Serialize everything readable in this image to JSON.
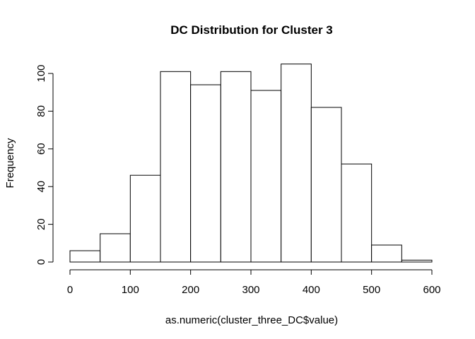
{
  "chart_data": {
    "type": "bar",
    "title": "DC Distribution for Cluster 3",
    "xlabel": "as.numeric(cluster_three_DC$value)",
    "ylabel": "Frequency",
    "bins": [
      {
        "x0": 0,
        "x1": 50,
        "count": 6
      },
      {
        "x0": 50,
        "x1": 100,
        "count": 15
      },
      {
        "x0": 100,
        "x1": 150,
        "count": 46
      },
      {
        "x0": 150,
        "x1": 200,
        "count": 101
      },
      {
        "x0": 200,
        "x1": 250,
        "count": 94
      },
      {
        "x0": 250,
        "x1": 300,
        "count": 101
      },
      {
        "x0": 300,
        "x1": 350,
        "count": 91
      },
      {
        "x0": 350,
        "x1": 400,
        "count": 105
      },
      {
        "x0": 400,
        "x1": 450,
        "count": 82
      },
      {
        "x0": 450,
        "x1": 500,
        "count": 52
      },
      {
        "x0": 500,
        "x1": 550,
        "count": 9
      },
      {
        "x0": 550,
        "x1": 600,
        "count": 1
      }
    ],
    "xlim": [
      0,
      600
    ],
    "ylim": [
      0,
      105
    ],
    "xticks": [
      0,
      100,
      200,
      300,
      400,
      500,
      600
    ],
    "yticks": [
      0,
      20,
      40,
      60,
      80,
      100
    ],
    "grid": false,
    "legend": "none"
  }
}
